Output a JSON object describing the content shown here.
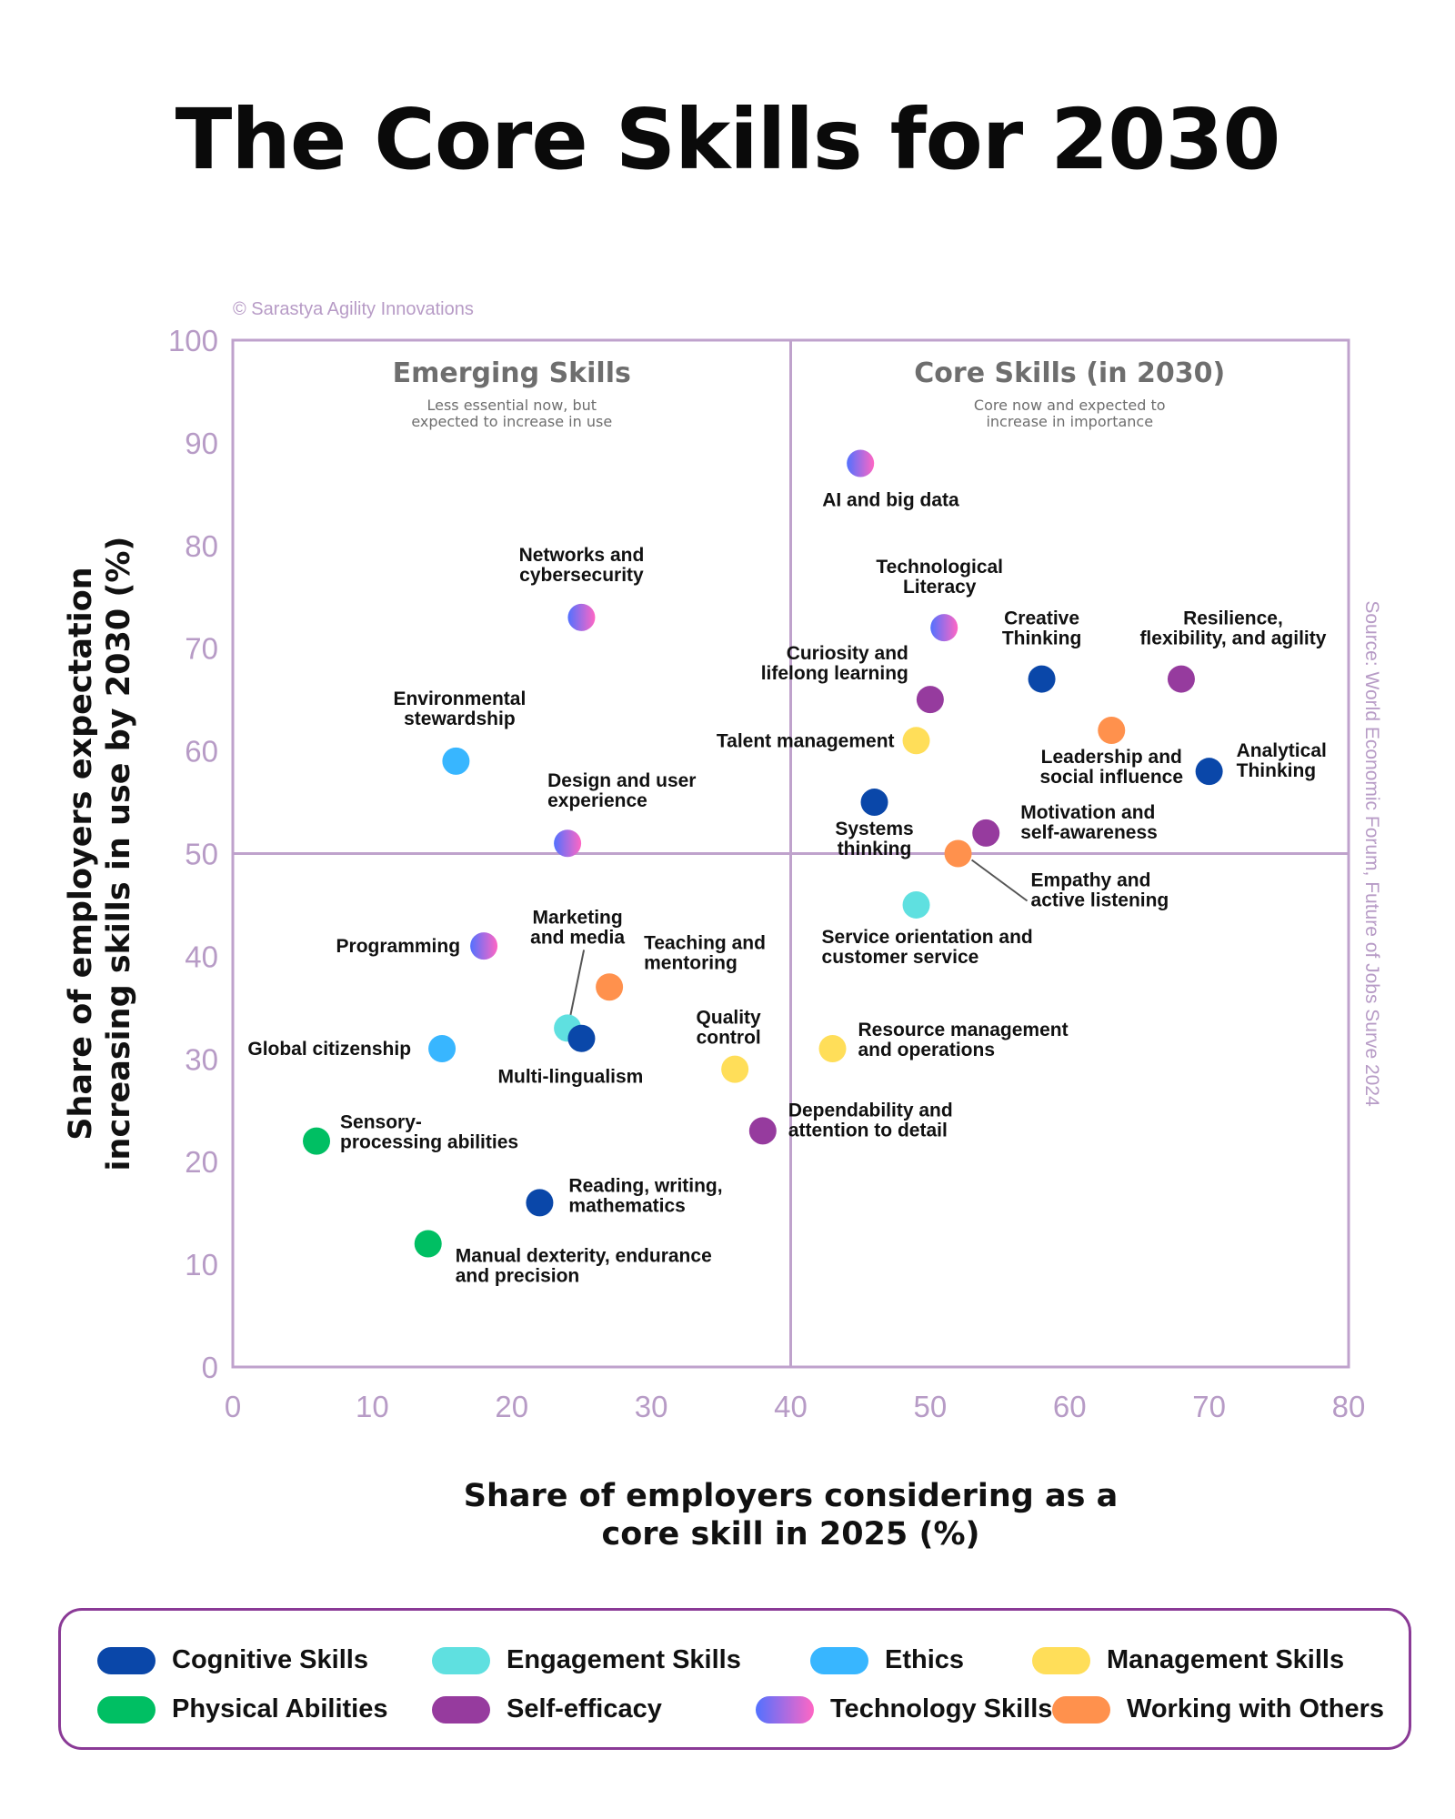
{
  "title": "The Core Skills for 2030",
  "copyright": "© Sarastya Agility Innovations",
  "source": "Source: World Economic Forum, Future of Jobs Surve 2024",
  "quadrants": {
    "emerging": {
      "title": "Emerging Skills",
      "subtitle": [
        "Less essential now, but",
        "expected to increase in use"
      ]
    },
    "core": {
      "title": "Core Skills (in 2030)",
      "subtitle": [
        "Core now and expected to",
        "increase in importance"
      ]
    }
  },
  "colors": {
    "Cognitive Skills": "#0a47a9",
    "Engagement Skills": "#5fe0e0",
    "Ethics": "#38b6ff",
    "Management Skills": "#ffde59",
    "Physical Abilities": "#00bf63",
    "Self-efficacy": "#963b9e",
    "Working with Others": "#ff914d",
    "Technology Skills": "gradient",
    "tech_from": "#5271ff",
    "tech_to": "#ff66c4",
    "axis": "#bfa2cc",
    "legend_border": "#8a3a96"
  },
  "chart_data": {
    "type": "scatter",
    "title": "The Core Skills for 2030",
    "xlabel": [
      "Share of employers considering as a",
      "core skill in 2025 (%)"
    ],
    "ylabel": [
      "Share of employers expectation",
      "increasing skills in use by 2030 (%)"
    ],
    "xlim": [
      0,
      80
    ],
    "ylim": [
      0,
      100
    ],
    "xticks": [
      0,
      10,
      20,
      30,
      40,
      50,
      60,
      70,
      80
    ],
    "yticks": [
      0,
      10,
      20,
      30,
      40,
      50,
      60,
      70,
      80,
      90,
      100
    ],
    "quadrant_split": {
      "x": 40,
      "y": 50
    },
    "points": [
      {
        "label": [
          "AI and big data"
        ],
        "category": "Technology Skills",
        "x": 45,
        "y": 88
      },
      {
        "label": [
          "Networks and",
          "cybersecurity"
        ],
        "category": "Technology Skills",
        "x": 25,
        "y": 73
      },
      {
        "label": [
          "Technological",
          "Literacy"
        ],
        "category": "Technology Skills",
        "x": 51,
        "y": 72
      },
      {
        "label": [
          "Creative",
          "Thinking"
        ],
        "category": "Cognitive Skills",
        "x": 58,
        "y": 67
      },
      {
        "label": [
          "Resilience,",
          "flexibility, and agility"
        ],
        "category": "Self-efficacy",
        "x": 68,
        "y": 67
      },
      {
        "label": [
          "Curiosity and",
          "lifelong learning"
        ],
        "category": "Self-efficacy",
        "x": 50,
        "y": 65
      },
      {
        "label": [
          "Talent management"
        ],
        "category": "Management Skills",
        "x": 49,
        "y": 61
      },
      {
        "label": [
          "Leadership and",
          "social influence"
        ],
        "category": "Working with Others",
        "x": 63,
        "y": 62
      },
      {
        "label": [
          "Analytical",
          "Thinking"
        ],
        "category": "Cognitive Skills",
        "x": 70,
        "y": 58
      },
      {
        "label": [
          "Environmental",
          "stewardship"
        ],
        "category": "Ethics",
        "x": 16,
        "y": 59
      },
      {
        "label": [
          "Design and user",
          "experience"
        ],
        "category": "Technology Skills",
        "x": 24,
        "y": 51
      },
      {
        "label": [
          "Systems",
          "thinking"
        ],
        "category": "Cognitive Skills",
        "x": 46,
        "y": 55
      },
      {
        "label": [
          "Motivation and",
          "self-awareness"
        ],
        "category": "Self-efficacy",
        "x": 54,
        "y": 52
      },
      {
        "label": [
          "Empathy and",
          "active listening"
        ],
        "category": "Working with Others",
        "x": 52,
        "y": 50
      },
      {
        "label": [
          "Service orientation and",
          "customer service"
        ],
        "category": "Engagement Skills",
        "x": 49,
        "y": 45
      },
      {
        "label": [
          "Programming"
        ],
        "category": "Technology Skills",
        "x": 18,
        "y": 41
      },
      {
        "label": [
          "Marketing",
          "and media"
        ],
        "category": "Engagement Skills",
        "x": 24,
        "y": 33
      },
      {
        "label": [
          "Teaching and",
          "mentoring"
        ],
        "category": "Working with Others",
        "x": 27,
        "y": 37
      },
      {
        "label": [
          "Multi-lingualism"
        ],
        "category": "Cognitive Skills",
        "x": 25,
        "y": 32
      },
      {
        "label": [
          "Global citizenship"
        ],
        "category": "Ethics",
        "x": 15,
        "y": 31
      },
      {
        "label": [
          "Quality",
          "control"
        ],
        "category": "Management Skills",
        "x": 36,
        "y": 29
      },
      {
        "label": [
          "Resource management",
          "and operations"
        ],
        "category": "Management Skills",
        "x": 43,
        "y": 31
      },
      {
        "label": [
          "Dependability and",
          "attention to detail"
        ],
        "category": "Self-efficacy",
        "x": 38,
        "y": 23
      },
      {
        "label": [
          "Sensory-",
          "processing abilities"
        ],
        "category": "Physical Abilities",
        "x": 6,
        "y": 22
      },
      {
        "label": [
          "Reading, writing,",
          "mathematics"
        ],
        "category": "Cognitive Skills",
        "x": 22,
        "y": 16
      },
      {
        "label": [
          "Manual dexterity, endurance",
          "and precision"
        ],
        "category": "Physical Abilities",
        "x": 14,
        "y": 12
      }
    ]
  },
  "legend": [
    {
      "label": "Cognitive Skills",
      "category": "Cognitive Skills"
    },
    {
      "label": "Engagement Skills",
      "category": "Engagement Skills"
    },
    {
      "label": "Ethics",
      "category": "Ethics"
    },
    {
      "label": "Management Skills",
      "category": "Management Skills"
    },
    {
      "label": "Physical Abilities",
      "category": "Physical Abilities"
    },
    {
      "label": "Self-efficacy",
      "category": "Self-efficacy"
    },
    {
      "label": "Technology Skills",
      "category": "Technology Skills"
    },
    {
      "label": "Working with Others",
      "category": "Working with Others"
    }
  ]
}
